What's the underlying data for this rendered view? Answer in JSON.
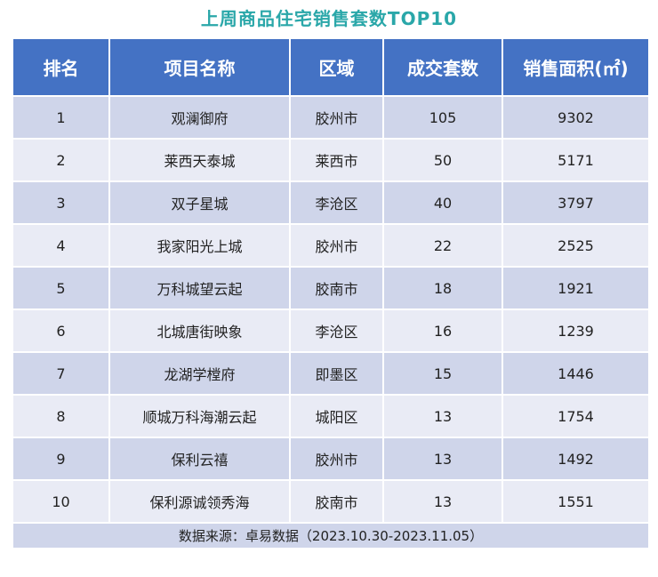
{
  "title": "上周商品住宅销售套数TOP10",
  "table": {
    "headers": [
      "排名",
      "项目名称",
      "区域",
      "成交套数",
      "销售面积(㎡)"
    ],
    "rows": [
      [
        "1",
        "观澜御府",
        "胶州市",
        "105",
        "9302"
      ],
      [
        "2",
        "莱西天泰城",
        "莱西市",
        "50",
        "5171"
      ],
      [
        "3",
        "双子星城",
        "李沧区",
        "40",
        "3797"
      ],
      [
        "4",
        "我家阳光上城",
        "胶州市",
        "22",
        "2525"
      ],
      [
        "5",
        "万科城望云起",
        "胶南市",
        "18",
        "1921"
      ],
      [
        "6",
        "北城唐街映象",
        "李沧区",
        "16",
        "1239"
      ],
      [
        "7",
        "龙湖学樘府",
        "即墨区",
        "15",
        "1446"
      ],
      [
        "8",
        "顺城万科海潮云起",
        "城阳区",
        "13",
        "1754"
      ],
      [
        "9",
        "保利云禧",
        "胶州市",
        "13",
        "1492"
      ],
      [
        "10",
        "保利源诚领秀海",
        "胶南市",
        "13",
        "1551"
      ]
    ],
    "footer": "数据来源：卓易数据（2023.10.30-2023.11.05）"
  },
  "colors": {
    "title": "#2aa7a9",
    "header_bg": "#4472c4",
    "row_dark": "#cfd5ea",
    "row_light": "#e9ebf5"
  }
}
